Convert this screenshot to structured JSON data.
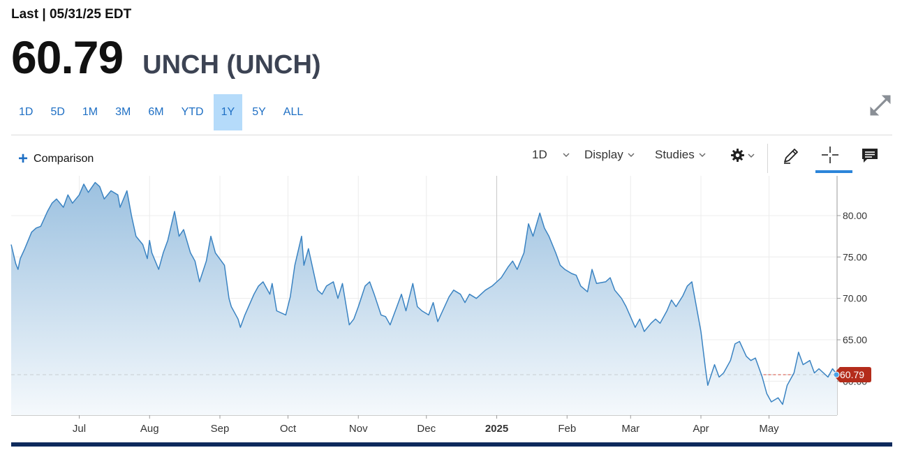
{
  "header": {
    "last_label": "Last | 05/31/25 EDT",
    "price": "60.79",
    "name": "UNCH (UNCH)"
  },
  "ranges": [
    {
      "label": "1D",
      "active": false
    },
    {
      "label": "5D",
      "active": false
    },
    {
      "label": "1M",
      "active": false
    },
    {
      "label": "3M",
      "active": false
    },
    {
      "label": "6M",
      "active": false
    },
    {
      "label": "YTD",
      "active": false
    },
    {
      "label": "1Y",
      "active": true
    },
    {
      "label": "5Y",
      "active": false
    },
    {
      "label": "ALL",
      "active": false
    }
  ],
  "toolbar": {
    "comparison_label": "Comparison",
    "interval_label": "1D",
    "display_label": "Display",
    "studies_label": "Studies",
    "icons": [
      "settings-gear-icon",
      "draw-pencil-icon",
      "crosshair-icon",
      "comments-icon",
      "expand-icon"
    ]
  },
  "colors": {
    "line": "#3a83c2",
    "fill_top": "#9cc1e0",
    "fill_bottom": "#f5f9fc",
    "accent": "#1e6fc4",
    "active_range": "#b5dbfa",
    "price_tag": "#b42c1b",
    "bottom_bar": "#0e2a5c"
  },
  "chart_data": {
    "type": "area",
    "title": "",
    "xlabel": "",
    "ylabel": "",
    "last_value": 60.79,
    "last_value_label": "60.79",
    "ylim": [
      55.9,
      84.8
    ],
    "yticks": [
      60,
      65,
      70,
      75,
      80
    ],
    "ytick_labels": [
      "60.00",
      "65.00",
      "70.00",
      "75.00",
      "80.00"
    ],
    "xtick_labels": [
      {
        "label": "Jul",
        "date": "2024-07-01"
      },
      {
        "label": "Aug",
        "date": "2024-08-01"
      },
      {
        "label": "Sep",
        "date": "2024-09-01"
      },
      {
        "label": "Oct",
        "date": "2024-10-01"
      },
      {
        "label": "Nov",
        "date": "2024-11-01"
      },
      {
        "label": "Dec",
        "date": "2024-12-01"
      },
      {
        "label": "2025",
        "date": "2025-01-01"
      },
      {
        "label": "Feb",
        "date": "2025-02-01"
      },
      {
        "label": "Mar",
        "date": "2025-03-01"
      },
      {
        "label": "Apr",
        "date": "2025-04-01"
      },
      {
        "label": "May",
        "date": "2025-05-01"
      }
    ],
    "grid": true,
    "series": [
      {
        "points": [
          [
            "2024-06-01",
            76.5
          ],
          [
            "2024-06-03",
            74.2
          ],
          [
            "2024-06-04",
            73.5
          ],
          [
            "2024-06-05",
            74.8
          ],
          [
            "2024-06-07",
            76.0
          ],
          [
            "2024-06-10",
            78.0
          ],
          [
            "2024-06-12",
            78.5
          ],
          [
            "2024-06-14",
            78.7
          ],
          [
            "2024-06-17",
            80.5
          ],
          [
            "2024-06-19",
            81.5
          ],
          [
            "2024-06-21",
            82.0
          ],
          [
            "2024-06-24",
            81.0
          ],
          [
            "2024-06-26",
            82.5
          ],
          [
            "2024-06-28",
            81.5
          ],
          [
            "2024-07-01",
            82.5
          ],
          [
            "2024-07-03",
            83.8
          ],
          [
            "2024-07-05",
            82.8
          ],
          [
            "2024-07-08",
            84.0
          ],
          [
            "2024-07-10",
            83.5
          ],
          [
            "2024-07-12",
            82.0
          ],
          [
            "2024-07-15",
            83.0
          ],
          [
            "2024-07-18",
            82.5
          ],
          [
            "2024-07-19",
            81.0
          ],
          [
            "2024-07-22",
            83.0
          ],
          [
            "2024-07-24",
            80.0
          ],
          [
            "2024-07-26",
            77.5
          ],
          [
            "2024-07-29",
            76.5
          ],
          [
            "2024-07-31",
            74.8
          ],
          [
            "2024-08-01",
            77.0
          ],
          [
            "2024-08-02",
            75.5
          ],
          [
            "2024-08-05",
            73.5
          ],
          [
            "2024-08-07",
            75.5
          ],
          [
            "2024-08-09",
            77.0
          ],
          [
            "2024-08-12",
            80.5
          ],
          [
            "2024-08-14",
            77.5
          ],
          [
            "2024-08-16",
            78.3
          ],
          [
            "2024-08-19",
            75.5
          ],
          [
            "2024-08-21",
            74.5
          ],
          [
            "2024-08-23",
            72.0
          ],
          [
            "2024-08-26",
            74.5
          ],
          [
            "2024-08-28",
            77.5
          ],
          [
            "2024-08-30",
            75.5
          ],
          [
            "2024-09-03",
            74.0
          ],
          [
            "2024-09-05",
            70.0
          ],
          [
            "2024-09-06",
            69.0
          ],
          [
            "2024-09-09",
            67.5
          ],
          [
            "2024-09-10",
            66.5
          ],
          [
            "2024-09-12",
            68.0
          ],
          [
            "2024-09-16",
            70.5
          ],
          [
            "2024-09-18",
            71.5
          ],
          [
            "2024-09-20",
            72.0
          ],
          [
            "2024-09-23",
            70.5
          ],
          [
            "2024-09-24",
            71.8
          ],
          [
            "2024-09-26",
            68.5
          ],
          [
            "2024-09-30",
            68.0
          ],
          [
            "2024-10-02",
            70.2
          ],
          [
            "2024-10-04",
            74.0
          ],
          [
            "2024-10-07",
            77.5
          ],
          [
            "2024-10-08",
            74.0
          ],
          [
            "2024-10-10",
            76.0
          ],
          [
            "2024-10-14",
            71.0
          ],
          [
            "2024-10-16",
            70.5
          ],
          [
            "2024-10-18",
            71.5
          ],
          [
            "2024-10-21",
            72.0
          ],
          [
            "2024-10-23",
            70.0
          ],
          [
            "2024-10-25",
            71.8
          ],
          [
            "2024-10-28",
            66.8
          ],
          [
            "2024-10-30",
            67.5
          ],
          [
            "2024-11-01",
            69.0
          ],
          [
            "2024-11-04",
            71.5
          ],
          [
            "2024-11-06",
            72.0
          ],
          [
            "2024-11-08",
            70.5
          ],
          [
            "2024-11-11",
            68.0
          ],
          [
            "2024-11-13",
            67.8
          ],
          [
            "2024-11-15",
            66.8
          ],
          [
            "2024-11-18",
            69.0
          ],
          [
            "2024-11-20",
            70.5
          ],
          [
            "2024-11-22",
            68.5
          ],
          [
            "2024-11-25",
            71.8
          ],
          [
            "2024-11-27",
            69.0
          ],
          [
            "2024-11-29",
            68.5
          ],
          [
            "2024-12-02",
            68.0
          ],
          [
            "2024-12-04",
            69.5
          ],
          [
            "2024-12-06",
            67.2
          ],
          [
            "2024-12-09",
            69.0
          ],
          [
            "2024-12-11",
            70.2
          ],
          [
            "2024-12-13",
            71.0
          ],
          [
            "2024-12-16",
            70.5
          ],
          [
            "2024-12-18",
            69.5
          ],
          [
            "2024-12-20",
            70.5
          ],
          [
            "2024-12-23",
            70.0
          ],
          [
            "2024-12-27",
            71.0
          ],
          [
            "2024-12-30",
            71.5
          ],
          [
            "2025-01-03",
            72.5
          ],
          [
            "2025-01-06",
            73.8
          ],
          [
            "2025-01-08",
            74.5
          ],
          [
            "2025-01-10",
            73.5
          ],
          [
            "2025-01-13",
            75.5
          ],
          [
            "2025-01-15",
            79.0
          ],
          [
            "2025-01-17",
            77.5
          ],
          [
            "2025-01-20",
            80.3
          ],
          [
            "2025-01-22",
            78.5
          ],
          [
            "2025-01-24",
            77.5
          ],
          [
            "2025-01-27",
            75.5
          ],
          [
            "2025-01-29",
            74.0
          ],
          [
            "2025-01-31",
            73.5
          ],
          [
            "2025-02-03",
            73.0
          ],
          [
            "2025-02-05",
            72.8
          ],
          [
            "2025-02-07",
            71.5
          ],
          [
            "2025-02-10",
            70.8
          ],
          [
            "2025-02-12",
            73.5
          ],
          [
            "2025-02-14",
            71.8
          ],
          [
            "2025-02-18",
            72.0
          ],
          [
            "2025-02-20",
            72.5
          ],
          [
            "2025-02-22",
            71.0
          ],
          [
            "2025-02-25",
            70.0
          ],
          [
            "2025-02-27",
            69.0
          ],
          [
            "2025-03-03",
            66.5
          ],
          [
            "2025-03-05",
            67.5
          ],
          [
            "2025-03-07",
            66.0
          ],
          [
            "2025-03-10",
            67.0
          ],
          [
            "2025-03-12",
            67.5
          ],
          [
            "2025-03-14",
            67.0
          ],
          [
            "2025-03-17",
            68.5
          ],
          [
            "2025-03-19",
            69.8
          ],
          [
            "2025-03-21",
            69.0
          ],
          [
            "2025-03-24",
            70.3
          ],
          [
            "2025-03-26",
            71.5
          ],
          [
            "2025-03-28",
            72.0
          ],
          [
            "2025-04-01",
            66.0
          ],
          [
            "2025-04-03",
            61.5
          ],
          [
            "2025-04-04",
            59.5
          ],
          [
            "2025-04-07",
            62.0
          ],
          [
            "2025-04-09",
            60.5
          ],
          [
            "2025-04-11",
            61.0
          ],
          [
            "2025-04-14",
            62.5
          ],
          [
            "2025-04-16",
            64.5
          ],
          [
            "2025-04-18",
            64.8
          ],
          [
            "2025-04-21",
            63.0
          ],
          [
            "2025-04-23",
            62.5
          ],
          [
            "2025-04-25",
            62.8
          ],
          [
            "2025-04-28",
            60.5
          ],
          [
            "2025-04-30",
            58.5
          ],
          [
            "2025-05-02",
            57.5
          ],
          [
            "2025-05-05",
            58.0
          ],
          [
            "2025-05-07",
            57.2
          ],
          [
            "2025-05-09",
            59.5
          ],
          [
            "2025-05-12",
            61.0
          ],
          [
            "2025-05-14",
            63.5
          ],
          [
            "2025-05-16",
            62.0
          ],
          [
            "2025-05-19",
            62.5
          ],
          [
            "2025-05-21",
            61.0
          ],
          [
            "2025-05-23",
            61.5
          ],
          [
            "2025-05-27",
            60.5
          ],
          [
            "2025-05-29",
            61.5
          ],
          [
            "2025-05-31",
            60.79
          ]
        ]
      }
    ]
  }
}
